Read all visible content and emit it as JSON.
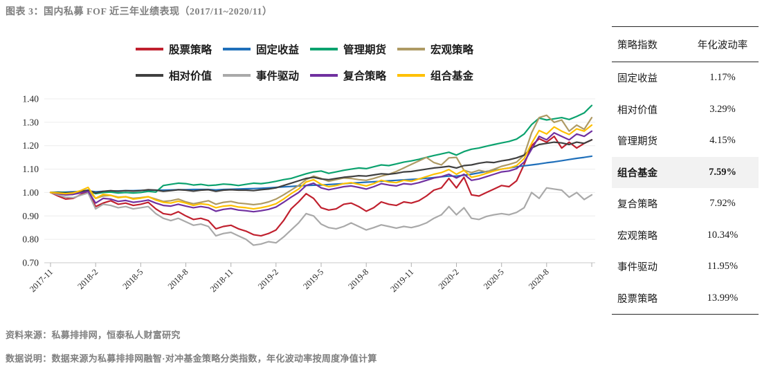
{
  "title": "图表 3：国内私募 FOF 近三年业绩表现（2017/11~2020/11）",
  "chart_data": {
    "type": "line",
    "x_range": [
      "2017-11",
      "2020-11"
    ],
    "x_tick_labels": [
      "2017-11",
      "2018-2",
      "2018-5",
      "2018-8",
      "2018-11",
      "2019-2",
      "2019-5",
      "2019-8",
      "2019-11",
      "2020-2",
      "2020-5",
      "2020-8"
    ],
    "y_tick_labels": [
      "1.40",
      "1.30",
      "1.20",
      "1.10",
      "1.00",
      "0.90",
      "0.80",
      "0.70"
    ],
    "ylim": [
      0.7,
      1.4
    ],
    "grid": "horizontal",
    "legend_position": "top",
    "series": [
      {
        "id": "stock-strategy",
        "name": "股票策略",
        "color": "#c0202e",
        "values": [
          1.0,
          0.985,
          0.972,
          0.975,
          0.99,
          1.005,
          0.94,
          0.955,
          0.965,
          0.95,
          0.955,
          0.945,
          0.95,
          0.958,
          0.93,
          0.91,
          0.905,
          0.918,
          0.9,
          0.885,
          0.89,
          0.88,
          0.845,
          0.855,
          0.86,
          0.845,
          0.835,
          0.82,
          0.815,
          0.825,
          0.84,
          0.88,
          0.93,
          0.96,
          0.995,
          0.975,
          0.935,
          0.925,
          0.93,
          0.95,
          0.955,
          0.94,
          0.92,
          0.935,
          0.96,
          0.95,
          0.945,
          0.96,
          0.955,
          0.965,
          0.985,
          1.01,
          1.02,
          1.06,
          1.02,
          1.065,
          0.99,
          0.985,
          1.0,
          1.015,
          1.03,
          1.025,
          1.05,
          1.12,
          1.2,
          1.23,
          1.215,
          1.24,
          1.19,
          1.215,
          1.19,
          1.21,
          1.225
        ]
      },
      {
        "id": "fixed-income",
        "name": "固定收益",
        "color": "#1f6fba",
        "values": [
          1.0,
          1.001,
          1.002,
          1.003,
          1.005,
          1.007,
          1.003,
          1.005,
          1.006,
          1.007,
          1.008,
          1.008,
          1.009,
          1.01,
          1.01,
          1.01,
          1.011,
          1.012,
          1.012,
          1.013,
          1.013,
          1.013,
          1.011,
          1.013,
          1.014,
          1.015,
          1.016,
          1.017,
          1.018,
          1.02,
          1.022,
          1.024,
          1.026,
          1.028,
          1.03,
          1.031,
          1.032,
          1.034,
          1.036,
          1.038,
          1.04,
          1.042,
          1.044,
          1.046,
          1.048,
          1.05,
          1.052,
          1.054,
          1.056,
          1.058,
          1.061,
          1.064,
          1.067,
          1.07,
          1.07,
          1.074,
          1.078,
          1.084,
          1.09,
          1.095,
          1.1,
          1.105,
          1.11,
          1.114,
          1.118,
          1.122,
          1.127,
          1.131,
          1.136,
          1.141,
          1.146,
          1.15,
          1.155
        ]
      },
      {
        "id": "managed-futures",
        "name": "管理期货",
        "color": "#0ba26e",
        "values": [
          1.0,
          1.002,
          1.0,
          0.998,
          1.002,
          1.008,
          0.995,
          1.0,
          1.002,
          0.998,
          1.0,
          0.998,
          1.0,
          1.005,
          1.002,
          1.03,
          1.035,
          1.04,
          1.038,
          1.032,
          1.035,
          1.03,
          1.032,
          1.036,
          1.034,
          1.03,
          1.035,
          1.04,
          1.038,
          1.042,
          1.048,
          1.055,
          1.06,
          1.07,
          1.08,
          1.088,
          1.092,
          1.082,
          1.088,
          1.095,
          1.1,
          1.105,
          1.102,
          1.11,
          1.118,
          1.115,
          1.122,
          1.13,
          1.135,
          1.142,
          1.15,
          1.158,
          1.165,
          1.172,
          1.16,
          1.175,
          1.185,
          1.19,
          1.198,
          1.205,
          1.212,
          1.218,
          1.228,
          1.25,
          1.29,
          1.318,
          1.31,
          1.315,
          1.32,
          1.312,
          1.325,
          1.34,
          1.372
        ]
      },
      {
        "id": "macro-strategy",
        "name": "宏观策略",
        "color": "#ae9a64",
        "values": [
          1.0,
          0.995,
          0.99,
          0.992,
          1.0,
          1.008,
          0.975,
          0.985,
          0.988,
          0.98,
          0.982,
          0.975,
          0.978,
          0.982,
          0.972,
          0.962,
          0.965,
          0.972,
          0.96,
          0.952,
          0.958,
          0.965,
          0.95,
          0.958,
          0.962,
          0.955,
          0.952,
          0.948,
          0.952,
          0.96,
          0.972,
          0.99,
          1.01,
          1.03,
          1.055,
          1.07,
          1.06,
          1.048,
          1.055,
          1.062,
          1.06,
          1.055,
          1.052,
          1.06,
          1.07,
          1.078,
          1.09,
          1.105,
          1.12,
          1.135,
          1.15,
          1.128,
          1.118,
          1.148,
          1.15,
          1.095,
          1.085,
          1.095,
          1.088,
          1.1,
          1.112,
          1.12,
          1.13,
          1.16,
          1.255,
          1.32,
          1.33,
          1.3,
          1.31,
          1.262,
          1.288,
          1.27,
          1.32
        ]
      },
      {
        "id": "relative-value",
        "name": "相对价值",
        "color": "#3f3f3f",
        "values": [
          1.0,
          1.0,
          0.998,
          1.0,
          1.005,
          1.01,
          0.998,
          1.005,
          1.008,
          1.005,
          1.008,
          1.006,
          1.008,
          1.012,
          1.01,
          1.005,
          1.008,
          1.012,
          1.01,
          1.006,
          1.01,
          1.012,
          1.005,
          1.01,
          1.012,
          1.01,
          1.01,
          1.008,
          1.012,
          1.015,
          1.02,
          1.03,
          1.04,
          1.05,
          1.06,
          1.065,
          1.058,
          1.055,
          1.06,
          1.065,
          1.068,
          1.072,
          1.07,
          1.075,
          1.08,
          1.078,
          1.082,
          1.088,
          1.09,
          1.095,
          1.1,
          1.105,
          1.108,
          1.112,
          1.105,
          1.115,
          1.118,
          1.125,
          1.13,
          1.128,
          1.135,
          1.14,
          1.148,
          1.16,
          1.19,
          1.205,
          1.21,
          1.215,
          1.212,
          1.205,
          1.215,
          1.21,
          1.225
        ]
      },
      {
        "id": "event-driven",
        "name": "事件驱动",
        "color": "#a9a9a9",
        "values": [
          1.0,
          0.99,
          0.98,
          0.978,
          0.988,
          0.998,
          0.93,
          0.95,
          0.945,
          0.935,
          0.94,
          0.93,
          0.935,
          0.94,
          0.91,
          0.89,
          0.88,
          0.89,
          0.875,
          0.86,
          0.865,
          0.855,
          0.815,
          0.825,
          0.83,
          0.815,
          0.8,
          0.775,
          0.78,
          0.79,
          0.785,
          0.81,
          0.84,
          0.87,
          0.91,
          0.9,
          0.865,
          0.85,
          0.845,
          0.855,
          0.87,
          0.855,
          0.84,
          0.85,
          0.862,
          0.855,
          0.848,
          0.855,
          0.85,
          0.858,
          0.87,
          0.89,
          0.905,
          0.94,
          0.905,
          0.935,
          0.89,
          0.885,
          0.898,
          0.905,
          0.91,
          0.905,
          0.915,
          0.935,
          1.0,
          0.975,
          1.02,
          1.015,
          1.01,
          0.98,
          1.0,
          0.97,
          0.99
        ]
      },
      {
        "id": "multi-strategy",
        "name": "复合策略",
        "color": "#7030a0",
        "values": [
          1.0,
          0.995,
          0.99,
          0.992,
          0.998,
          1.005,
          0.955,
          0.975,
          0.972,
          0.962,
          0.966,
          0.958,
          0.962,
          0.968,
          0.955,
          0.945,
          0.942,
          0.95,
          0.942,
          0.935,
          0.94,
          0.935,
          0.92,
          0.928,
          0.932,
          0.925,
          0.922,
          0.918,
          0.922,
          0.928,
          0.938,
          0.958,
          0.98,
          1.0,
          1.03,
          1.04,
          1.02,
          1.012,
          1.018,
          1.025,
          1.028,
          1.022,
          1.015,
          1.025,
          1.038,
          1.032,
          1.028,
          1.038,
          1.035,
          1.042,
          1.052,
          1.062,
          1.068,
          1.078,
          1.062,
          1.078,
          1.052,
          1.058,
          1.068,
          1.078,
          1.088,
          1.092,
          1.102,
          1.13,
          1.185,
          1.24,
          1.225,
          1.255,
          1.24,
          1.225,
          1.25,
          1.24,
          1.262
        ]
      },
      {
        "id": "fund-of-funds",
        "name": "组合基金",
        "color": "#ffc000",
        "values": [
          1.0,
          0.998,
          0.995,
          0.998,
          1.008,
          1.022,
          0.975,
          0.992,
          0.988,
          0.978,
          0.982,
          0.972,
          0.976,
          0.982,
          0.968,
          0.958,
          0.955,
          0.963,
          0.955,
          0.945,
          0.952,
          0.948,
          0.935,
          0.942,
          0.945,
          0.938,
          0.935,
          0.93,
          0.935,
          0.942,
          0.952,
          0.972,
          0.995,
          1.015,
          1.045,
          1.055,
          1.035,
          1.025,
          1.03,
          1.038,
          1.042,
          1.035,
          1.028,
          1.038,
          1.052,
          1.045,
          1.042,
          1.052,
          1.048,
          1.058,
          1.068,
          1.078,
          1.085,
          1.098,
          1.078,
          1.095,
          1.065,
          1.072,
          1.082,
          1.092,
          1.1,
          1.105,
          1.115,
          1.145,
          1.21,
          1.265,
          1.25,
          1.28,
          1.262,
          1.248,
          1.272,
          1.262,
          1.288
        ]
      }
    ]
  },
  "table": {
    "headers": [
      "策略指数",
      "年化波动率"
    ],
    "rows": [
      {
        "id": "fixed-income",
        "strategy": "固定收益",
        "volatility": "1.17%",
        "highlighted": false
      },
      {
        "id": "relative-value",
        "strategy": "相对价值",
        "volatility": "3.29%",
        "highlighted": false
      },
      {
        "id": "managed-futures",
        "strategy": "管理期货",
        "volatility": "4.15%",
        "highlighted": false
      },
      {
        "id": "fund-of-funds",
        "strategy": "组合基金",
        "volatility": "7.59%",
        "highlighted": true
      },
      {
        "id": "multi-strategy",
        "strategy": "复合策略",
        "volatility": "7.92%",
        "highlighted": false
      },
      {
        "id": "macro-strategy",
        "strategy": "宏观策略",
        "volatility": "10.34%",
        "highlighted": false
      },
      {
        "id": "event-driven",
        "strategy": "事件驱动",
        "volatility": "11.95%",
        "highlighted": false
      },
      {
        "id": "stock-strategy",
        "strategy": "股票策略",
        "volatility": "13.99%",
        "highlighted": false
      }
    ]
  },
  "footer": {
    "source": "资料来源：私募排排网，恒泰私人财富研究",
    "note": "数据说明：数据来源为私募排排网融智·对冲基金策略分类指数，年化波动率按周度净值计算"
  }
}
